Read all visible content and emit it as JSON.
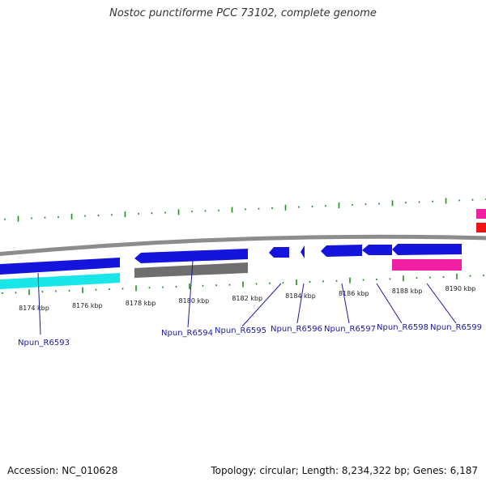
{
  "title": "Nostoc punctiforme PCC 73102, complete genome",
  "footer": {
    "accession": "Accession: NC_010628",
    "summary": "Topology: circular; Length: 8,234,322 bp; Genes: 6,187"
  },
  "colors": {
    "backbone": "#8c8c8c",
    "forward_gene": "#1414dc",
    "rna_gene": "#19e6e6",
    "pseudo_gene": "#6e6e6e",
    "feature_pink": "#f01ea0",
    "feature_red": "#f01414",
    "gc_tick": "#1e8c1e",
    "label": "#1a1aa6"
  },
  "kbp_ticks": [
    {
      "label": "8174 kbp"
    },
    {
      "label": "8176 kbp"
    },
    {
      "label": "8178 kbp"
    },
    {
      "label": "8180 kbp"
    },
    {
      "label": "8182 kbp"
    },
    {
      "label": "8184 kbp"
    },
    {
      "label": "8186 kbp"
    },
    {
      "label": "8188 kbp"
    },
    {
      "label": "8190 kbp"
    }
  ],
  "gene_labels": [
    {
      "name": "Npun_R6593"
    },
    {
      "name": "Npun_R6594"
    },
    {
      "name": "Npun_R6595"
    },
    {
      "name": "Npun_R6596"
    },
    {
      "name": "Npun_R6597"
    },
    {
      "name": "Npun_R6598"
    },
    {
      "name": "Npun_R6599"
    }
  ]
}
